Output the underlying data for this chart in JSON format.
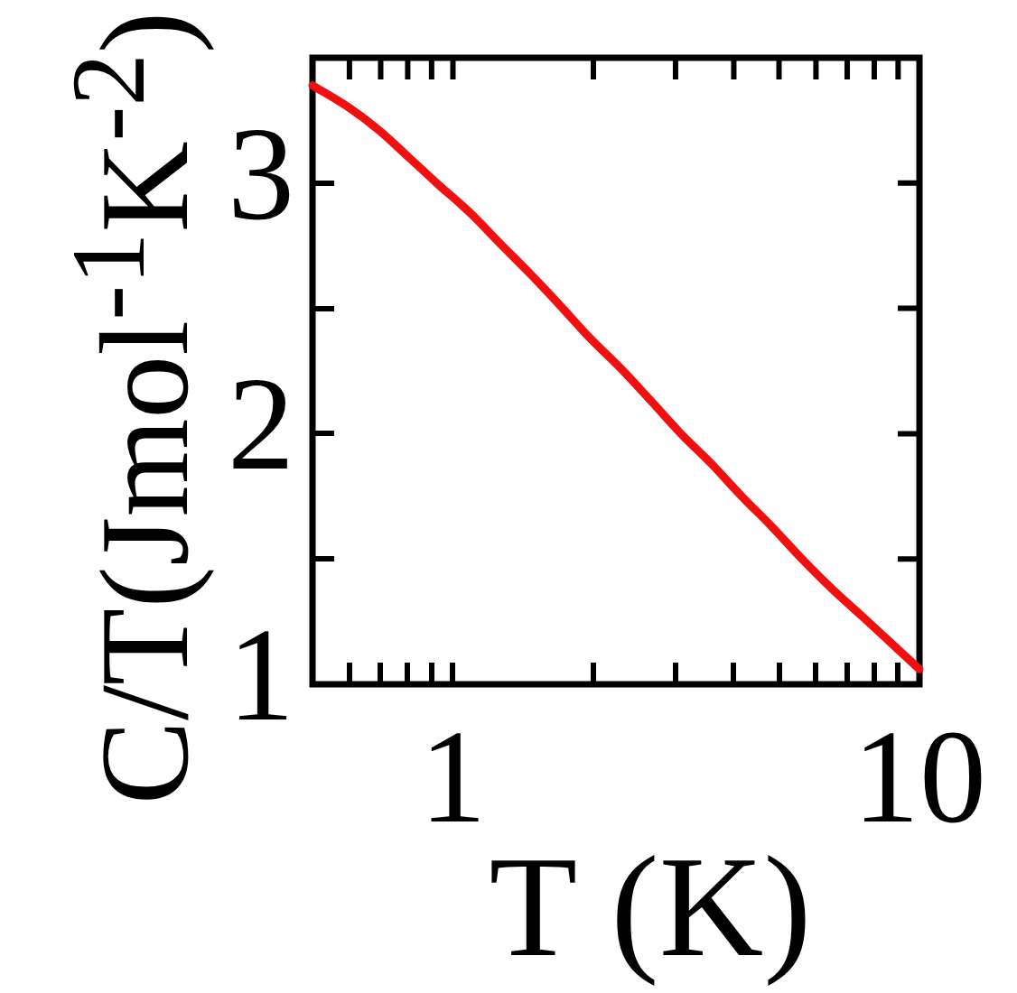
{
  "chart_data": {
    "type": "line",
    "xlabel": "T (K)",
    "ylabel": "C/T(Jmol$^{-1}$K$^{-2}$)",
    "x": [
      0.5,
      0.6,
      0.695,
      0.807,
      0.923,
      1.09,
      1.26,
      1.46,
      1.7,
      1.97,
      2.29,
      2.66,
      3.08,
      3.58,
      4.16,
      4.82,
      5.6,
      6.5,
      7.55,
      8.75,
      10
    ],
    "series": [
      {
        "color": "#f01010",
        "values": [
          3.39,
          3.3,
          3.21,
          3.1,
          3.0,
          2.88,
          2.76,
          2.64,
          2.51,
          2.38,
          2.26,
          2.13,
          2.0,
          1.88,
          1.75,
          1.63,
          1.5,
          1.38,
          1.27,
          1.16,
          1.06
        ]
      }
    ],
    "log": "x",
    "line_style": "solid",
    "xlim": [
      0.5,
      10
    ],
    "xticks": [
      {
        "value": 0.6,
        "label": null
      },
      {
        "value": 0.7,
        "label": null
      },
      {
        "value": 0.8,
        "label": null
      },
      {
        "value": 0.9,
        "label": null
      },
      1,
      {
        "value": 2,
        "label": null
      },
      {
        "value": 3,
        "label": null
      },
      {
        "value": 4,
        "label": null
      },
      {
        "value": 5,
        "label": null
      },
      {
        "value": 6,
        "label": null
      },
      {
        "value": 7,
        "label": null
      },
      {
        "value": 8,
        "label": null
      },
      {
        "value": 9,
        "label": null
      },
      10
    ],
    "ylim": [
      1,
      3.5
    ],
    "yticks": [
      1,
      {
        "value": 1.5,
        "label": null
      },
      2,
      {
        "value": 2.5,
        "label": null
      },
      3
    ]
  }
}
